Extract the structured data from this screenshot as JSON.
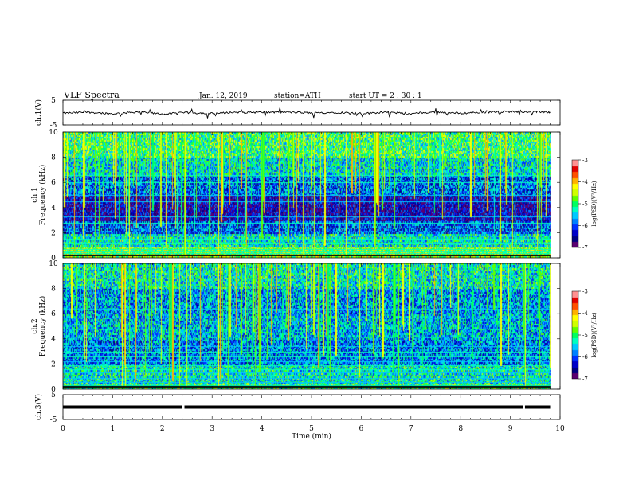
{
  "header": {
    "title": "VLF  Spectra",
    "date": "Jan.  12,  2019",
    "station": "station=ATH",
    "start": "start  UT  =    2  :  30 : 1"
  },
  "colors": {
    "palette": [
      "#5a0070",
      "#000080",
      "#0000c8",
      "#0030ff",
      "#0080ff",
      "#00c8ff",
      "#00ffc0",
      "#00ff60",
      "#60ff00",
      "#d0ff00",
      "#ffff00",
      "#ffb000",
      "#ff5000",
      "#e00000",
      "#ff9090",
      "#ffffff"
    ],
    "trace": "#000000",
    "axis": "#000000"
  },
  "chart_data": [
    {
      "type": "line",
      "name": "ch1-voltage",
      "ylabel": "ch.1(V)",
      "ylim": [
        -5,
        5
      ],
      "yticks": [
        5,
        -5
      ],
      "xlim": [
        0,
        10
      ],
      "x": [
        0,
        0.5,
        1,
        1.5,
        2,
        2.5,
        3,
        3.5,
        4,
        4.5,
        5,
        5.5,
        6,
        6.5,
        7,
        7.5,
        8,
        8.5,
        9,
        9.5,
        9.8
      ],
      "y": [
        -0.3,
        0.2,
        -0.5,
        0.3,
        -0.6,
        0.0,
        -0.4,
        0.2,
        0.1,
        0.2,
        -0.2,
        0.1,
        -0.4,
        0.2,
        -0.5,
        0.3,
        -0.3,
        0.2,
        0.4,
        0.3,
        0.2
      ]
    },
    {
      "type": "heatmap",
      "name": "ch1-spectrogram",
      "ylabel": "ch.1",
      "ylabel2": "Frequency  (kHz)",
      "ylim": [
        0,
        10
      ],
      "yticks": [
        "0",
        "2",
        "4",
        "6",
        "8",
        "10"
      ],
      "xlim": [
        0,
        10
      ],
      "data_end_min": 9.8,
      "colorbar": {
        "label": "log(PSD)(V²/Hz)",
        "ticks": [
          "-3",
          "-4",
          "-5",
          "-6",
          "-7"
        ],
        "range": [
          -7,
          -3
        ]
      },
      "cmap": "jet",
      "levels": [
        {
          "f": [
            8,
            10
          ],
          "level": -5.0
        },
        {
          "f": [
            6.5,
            8
          ],
          "level": -5.4
        },
        {
          "f": [
            5,
            6.5
          ],
          "level": -5.9
        },
        {
          "f": [
            3,
            5
          ],
          "level": -6.5
        },
        {
          "f": [
            2,
            3
          ],
          "level": -6.0
        },
        {
          "f": [
            1,
            2
          ],
          "level": -5.3
        },
        {
          "f": [
            0,
            1
          ],
          "level": -4.6
        }
      ],
      "lines_khz": [
        0.2,
        0.35,
        0.5,
        0.7,
        0.9,
        1.2,
        1.5,
        1.8,
        2.1,
        2.4,
        2.8,
        3.3,
        4.5,
        5.0,
        6.0,
        6.6
      ]
    },
    {
      "type": "heatmap",
      "name": "ch2-spectrogram",
      "ylabel": "ch.2",
      "ylabel2": "Frequency  (kHz)",
      "ylim": [
        0,
        10
      ],
      "yticks": [
        "0",
        "2",
        "4",
        "6",
        "8",
        "10"
      ],
      "xlim": [
        0,
        10
      ],
      "data_end_min": 9.8,
      "colorbar": {
        "label": "log(PSD)(V²/Hz)",
        "ticks": [
          "-3",
          "-4",
          "-5",
          "-6",
          "-7"
        ],
        "range": [
          -7,
          -3
        ]
      },
      "cmap": "jet",
      "levels": [
        {
          "f": [
            8,
            10
          ],
          "level": -5.3
        },
        {
          "f": [
            6,
            8
          ],
          "level": -5.7
        },
        {
          "f": [
            4,
            6
          ],
          "level": -5.6
        },
        {
          "f": [
            2,
            4
          ],
          "level": -5.8
        },
        {
          "f": [
            0.5,
            2
          ],
          "level": -5.3
        },
        {
          "f": [
            0,
            0.5
          ],
          "level": -5.0
        }
      ],
      "lines_khz": [
        0.3,
        0.6,
        0.9,
        1.3,
        1.6,
        1.9,
        2.2,
        2.6,
        3.0,
        3.4,
        4.2,
        4.8,
        5.7,
        6.4
      ]
    },
    {
      "type": "line",
      "name": "ch3-voltage",
      "ylabel": "ch.3(V)",
      "ylim": [
        -5,
        5
      ],
      "yticks": [
        5,
        -5
      ],
      "xlim": [
        0,
        10
      ],
      "xlabel": "Time  (min)",
      "xticks": [
        "0",
        "1",
        "2",
        "3",
        "4",
        "5",
        "6",
        "7",
        "8",
        "9",
        "10"
      ],
      "x": [
        0,
        9.8
      ],
      "y": [
        0,
        0
      ],
      "gaps_min": [
        2.42,
        9.27
      ]
    }
  ]
}
